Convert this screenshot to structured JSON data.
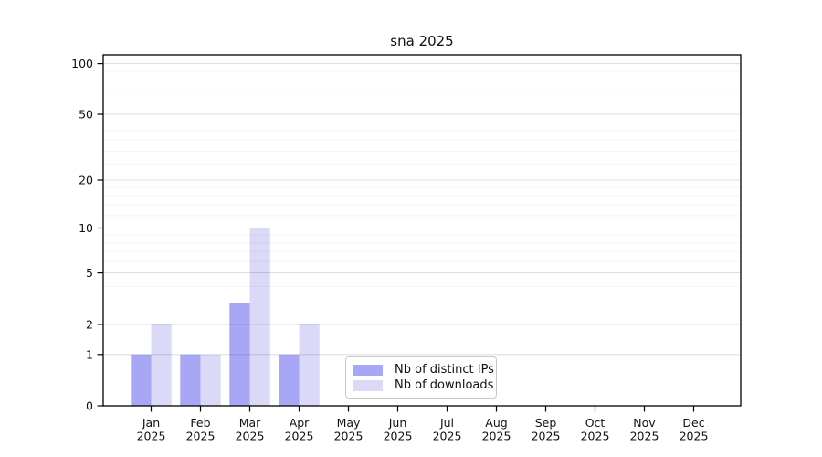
{
  "figure": {
    "background": "#ffffff"
  },
  "chart_data": {
    "type": "bar",
    "title": "sna 2025",
    "scale": "log1p",
    "xlabel": "",
    "ylabel": "",
    "x_months": [
      "Jan",
      "Feb",
      "Mar",
      "Apr",
      "May",
      "Jun",
      "Jul",
      "Aug",
      "Sep",
      "Oct",
      "Nov",
      "Dec"
    ],
    "x_year": "2025",
    "categories": [
      "Jan 2025",
      "Feb 2025",
      "Mar 2025",
      "Apr 2025",
      "May 2025",
      "Jun 2025",
      "Jul 2025",
      "Aug 2025",
      "Sep 2025",
      "Oct 2025",
      "Nov 2025",
      "Dec 2025"
    ],
    "series": [
      {
        "name": "Nb of distinct IPs",
        "color": "#a7a7f5",
        "values": [
          1,
          1,
          3,
          1,
          0,
          0,
          0,
          0,
          0,
          0,
          0,
          0
        ]
      },
      {
        "name": "Nb of downloads",
        "color": "#dadaf8",
        "values": [
          2,
          1,
          10,
          2,
          0,
          0,
          0,
          0,
          0,
          0,
          0,
          0
        ]
      }
    ],
    "y_ticks": [
      0,
      1,
      2,
      5,
      10,
      20,
      50,
      100
    ],
    "y_minor_gridlines": [
      3,
      4,
      6,
      7,
      8,
      9,
      12,
      14,
      16,
      18,
      25,
      30,
      35,
      40,
      45,
      60,
      70,
      80,
      90
    ],
    "ylim": [
      0,
      112
    ],
    "grid": true,
    "legend": {
      "position": "lower-center",
      "entries": [
        "Nb of distinct IPs",
        "Nb of downloads"
      ]
    },
    "colors": {
      "axis_line": "#000000",
      "tick_text": "#111111",
      "grid_major": "rgba(0,0,0,0.125)",
      "grid_minor": "rgba(0,0,0,0.045)"
    }
  }
}
